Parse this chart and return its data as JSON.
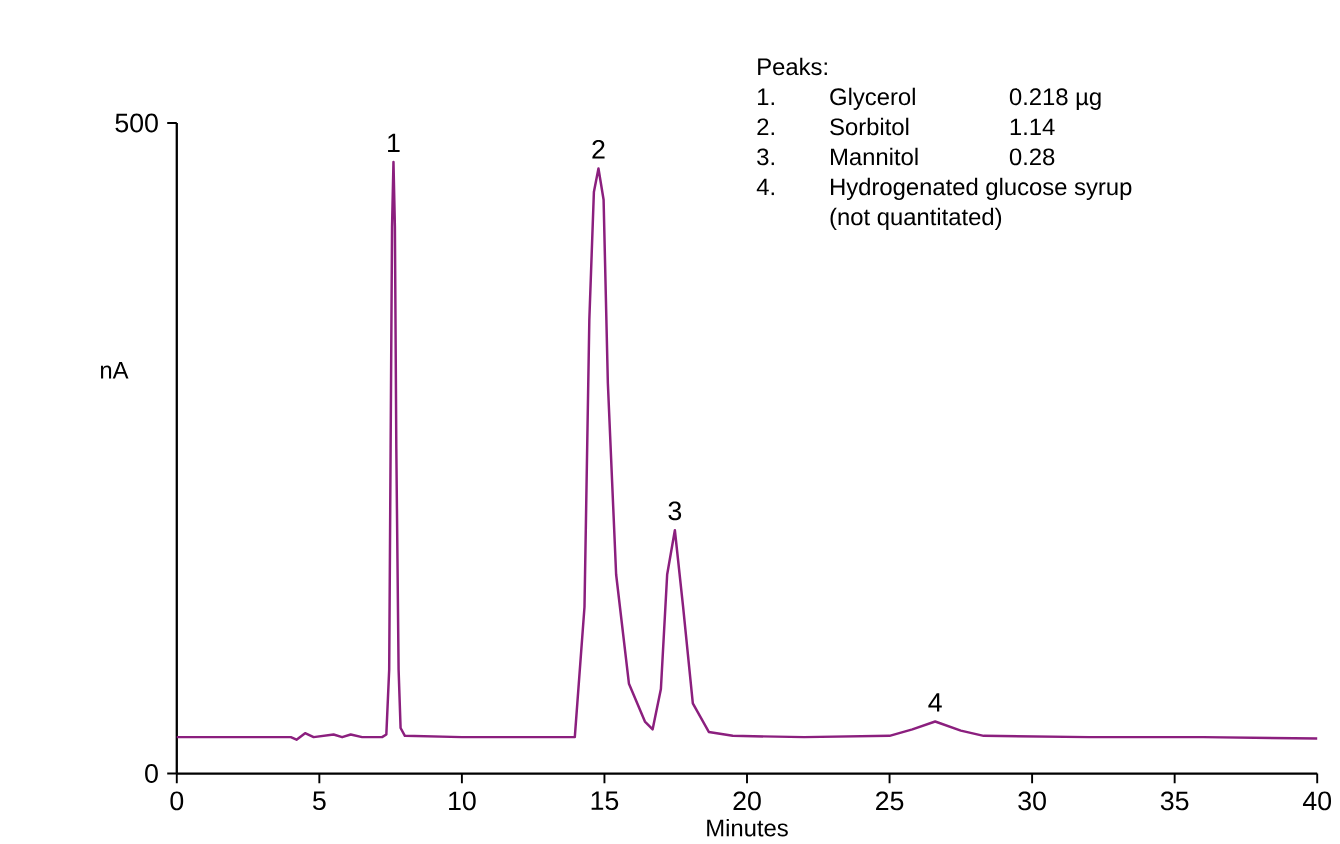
{
  "chart_data": {
    "type": "line",
    "xlabel": "Minutes",
    "ylabel": "nA",
    "xlim": [
      0,
      40
    ],
    "xticks": [
      0,
      5,
      10,
      15,
      20,
      25,
      30,
      35,
      40
    ],
    "ylim": [
      0,
      500
    ],
    "yticks": [
      0,
      500
    ],
    "grid": false,
    "marker": "none",
    "line_style": "solid",
    "series": [
      {
        "color": "#8b1f7e",
        "x": [
          0,
          2,
          4,
          4.2,
          4.5,
          4.8,
          5.5,
          5.8,
          6.1,
          6.5,
          7.2,
          7.35,
          7.45,
          7.5,
          7.55,
          7.6,
          7.65,
          7.7,
          7.78,
          7.85,
          8.0,
          10,
          12,
          13.96,
          14.3,
          14.47,
          14.63,
          14.79,
          14.97,
          15.12,
          15.41,
          15.86,
          16.42,
          16.69,
          16.98,
          17.2,
          17.47,
          17.76,
          18.1,
          18.66,
          19.5,
          22,
          25,
          25.8,
          26.6,
          27.5,
          28.3,
          32,
          36,
          40
        ],
        "values": [
          28,
          28,
          28,
          26,
          31,
          28,
          30,
          28,
          30,
          28,
          28,
          30,
          80,
          250,
          420,
          470,
          420,
          250,
          80,
          35,
          29,
          28,
          28,
          28,
          128,
          349,
          447,
          465,
          441,
          300,
          153,
          69,
          40,
          34,
          65,
          153,
          187,
          128,
          54,
          32,
          29,
          28,
          29,
          34,
          40,
          33,
          29,
          28,
          28,
          27
        ]
      }
    ],
    "annotations": [
      {
        "text": "1",
        "x": 7.6,
        "y": 470
      },
      {
        "text": "2",
        "x": 14.79,
        "y": 465
      },
      {
        "text": "3",
        "x": 17.47,
        "y": 187
      },
      {
        "text": "4",
        "x": 26.6,
        "y": 40
      },
      "Peaks:",
      "1.",
      "Glycerol",
      "0.218 µg",
      "2.",
      "Sorbitol",
      "1.14",
      "3.",
      "Mannitol",
      "0.28",
      "4.",
      "Hydrogenated glucose syrup",
      "(not quantitated)"
    ]
  }
}
